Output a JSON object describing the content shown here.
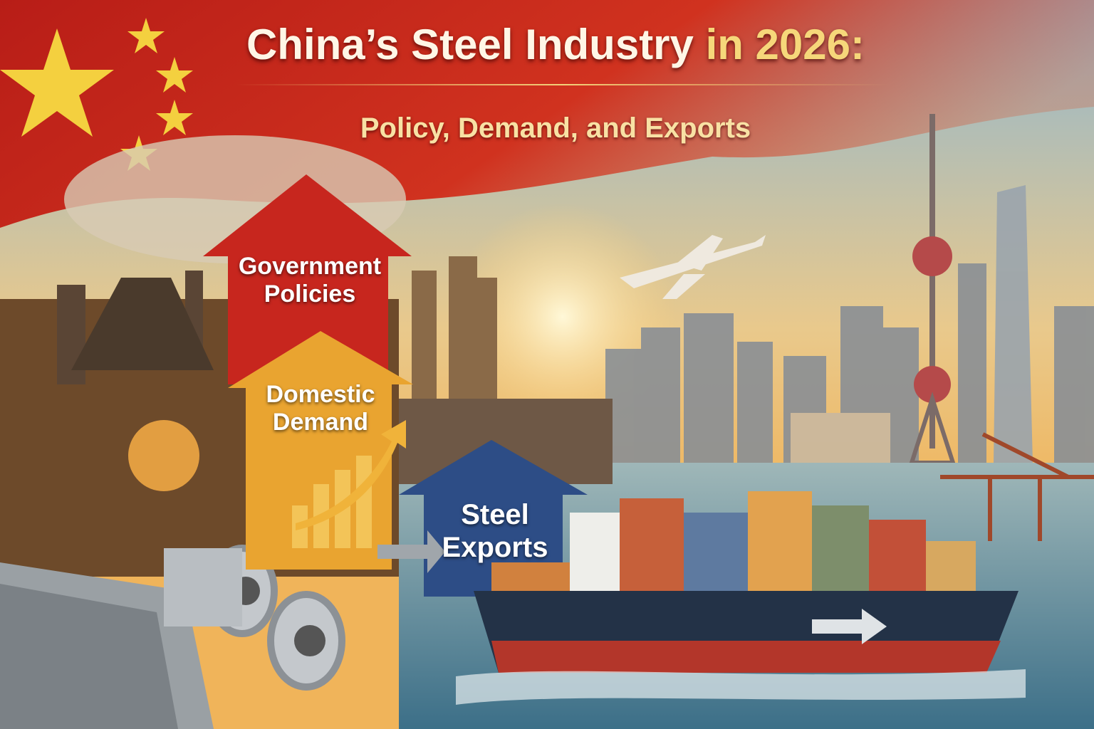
{
  "header": {
    "title_main": "China’s Steel Industry",
    "title_year": "in 2026:",
    "subtitle": "Policy, Demand, and Exports"
  },
  "arrows": [
    {
      "label": "Government Policies",
      "color": "#c7261e"
    },
    {
      "label": "Domestic Demand",
      "color": "#e9a430"
    },
    {
      "label": "Steel Exports",
      "color": "#2d4d86"
    }
  ],
  "colors": {
    "flag_red": "#c8251c",
    "flag_star": "#f4d03f",
    "sky": "#9fc2d6",
    "water": "#5f8ea3",
    "ship_hull": "#233247"
  }
}
